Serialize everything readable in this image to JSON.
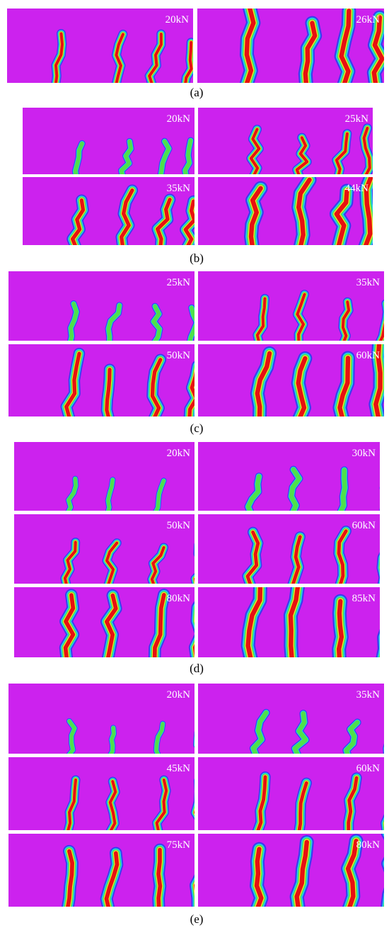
{
  "figure": {
    "panels": [
      {
        "caption": "(a)",
        "images": [
          {
            "label": "20kN"
          },
          {
            "label": "26kN"
          }
        ]
      },
      {
        "caption": "(b)",
        "images": [
          {
            "label": "20kN"
          },
          {
            "label": "25kN"
          },
          {
            "label": "35kN"
          },
          {
            "label": "44kN"
          }
        ]
      },
      {
        "caption": "(c)",
        "images": [
          {
            "label": "25kN"
          },
          {
            "label": "35kN"
          },
          {
            "label": "50kN"
          },
          {
            "label": "60kN"
          }
        ]
      },
      {
        "caption": "(d)",
        "images": [
          {
            "label": "20kN"
          },
          {
            "label": "30kN"
          },
          {
            "label": "50kN"
          },
          {
            "label": "60kN"
          },
          {
            "label": "80kN"
          },
          {
            "label": "85kN"
          }
        ]
      },
      {
        "caption": "(e)",
        "images": [
          {
            "label": "20kN"
          },
          {
            "label": "35kN"
          },
          {
            "label": "45kN"
          },
          {
            "label": "60kN"
          },
          {
            "label": "75kN"
          },
          {
            "label": "80kN"
          }
        ]
      }
    ]
  }
}
